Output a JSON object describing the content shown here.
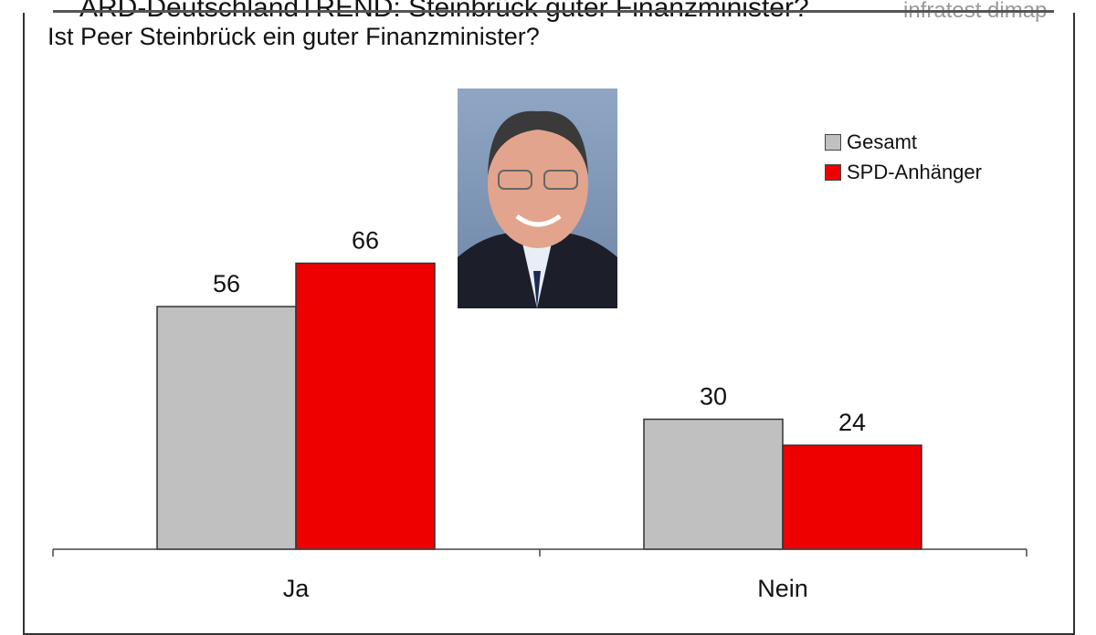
{
  "header": {
    "title": "ARD-DeutschlandTREND: Steinbrück guter Finanzminister?",
    "source": "infratest dimap"
  },
  "chart_data": {
    "type": "bar",
    "title": "Ist Peer Steinbrück ein guter Finanzminister?",
    "categories": [
      "Ja",
      "Nein"
    ],
    "series": [
      {
        "name": "Gesamt",
        "values": [
          56,
          30
        ],
        "color": "#c0c0c0"
      },
      {
        "name": "SPD-Anhänger",
        "values": [
          66,
          24
        ],
        "color": "#ee0000"
      }
    ],
    "xlabel": "",
    "ylabel": "",
    "grid": false,
    "legend": "top-right"
  },
  "photo": {
    "subject": "portrait"
  }
}
